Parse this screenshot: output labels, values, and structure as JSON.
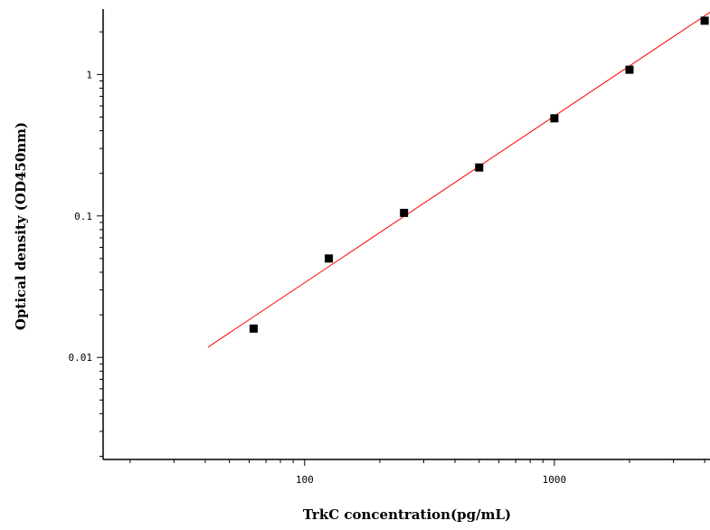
{
  "chart_data": {
    "type": "scatter",
    "xlabel": "TrkC concentration(pg/mL)",
    "ylabel": "Optical density (OD450nm)",
    "x_scale": "log",
    "y_scale": "log",
    "xlim": [
      15.6,
      4200
    ],
    "ylim": [
      0.0019,
      2.9
    ],
    "x_ticks": [
      {
        "value": 100,
        "label": "100"
      },
      {
        "value": 1000,
        "label": "1000"
      }
    ],
    "y_ticks": [
      {
        "value": 0.01,
        "label": "0.01"
      },
      {
        "value": 0.1,
        "label": "0.1"
      },
      {
        "value": 1,
        "label": "1"
      }
    ],
    "grid": false,
    "series": [
      {
        "marker": "square",
        "color": "#000000",
        "x": [
          62.5,
          125,
          250,
          500,
          1000,
          2000,
          4000
        ],
        "y": [
          0.016,
          0.05,
          0.105,
          0.22,
          0.49,
          1.08,
          2.4
        ]
      }
    ],
    "fit_line": {
      "color": "#ff0000",
      "x": [
        41,
        4200
      ],
      "y": [
        0.0118,
        2.75
      ]
    }
  }
}
